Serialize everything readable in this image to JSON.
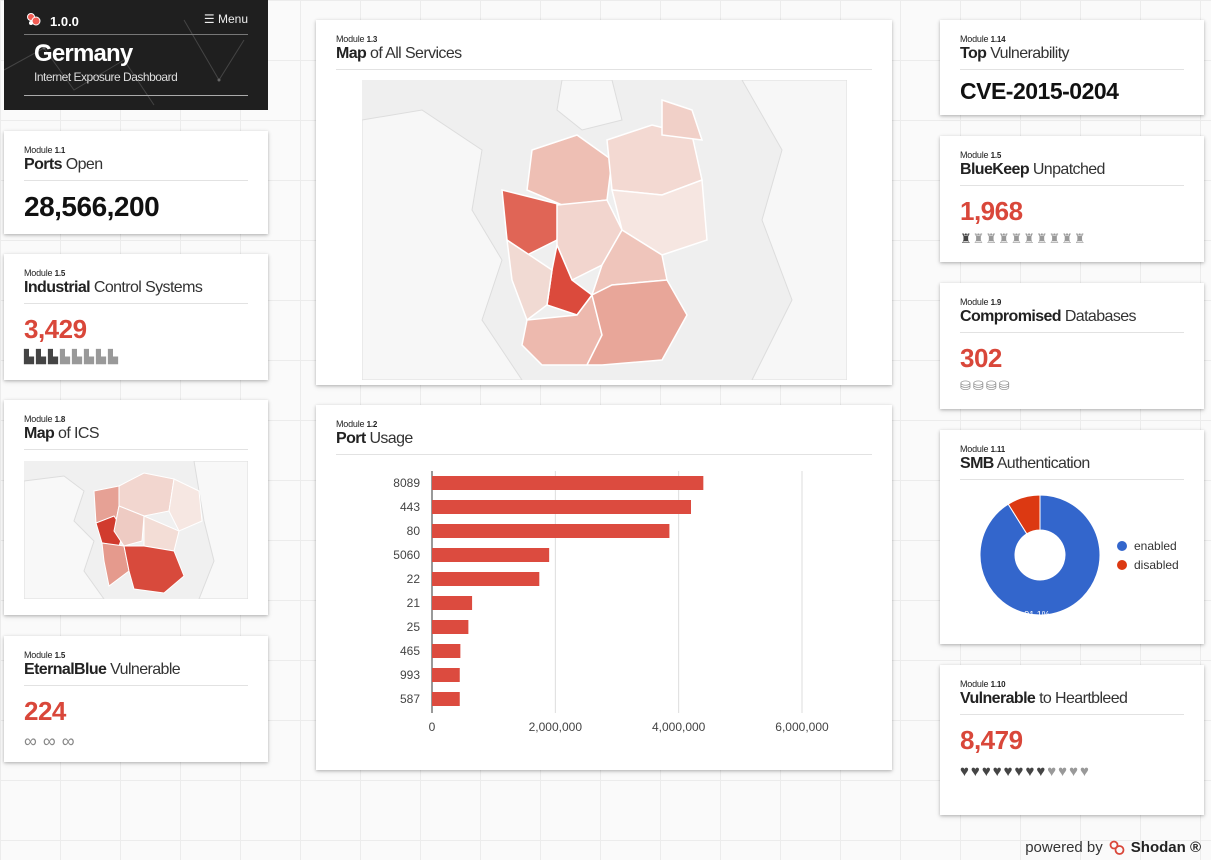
{
  "header": {
    "version": "1.0.0",
    "menu_label": "Menu",
    "country": "Germany",
    "subtitle": "Internet Exposure Dashboard"
  },
  "ports_open": {
    "module_word": "Module",
    "module_num": "1.1",
    "title_bold": "Ports",
    "title_rest": " Open",
    "value": "28,566,200"
  },
  "ics": {
    "module_word": "Module",
    "module_num": "1.5",
    "title_bold": "Industrial",
    "title_rest": " Control Systems",
    "value": "3,429",
    "icon": "factory-icon",
    "icons_total": 8,
    "icons_on": 3
  },
  "ics_map": {
    "module_word": "Module",
    "module_num": "1.8",
    "title_bold": "Map",
    "title_rest": " of ICS"
  },
  "eternalblue": {
    "module_word": "Module",
    "module_num": "1.5",
    "title_bold": "EternalBlue",
    "title_rest": " Vulnerable",
    "value": "224",
    "icon": "infinity-icon",
    "icons_total": 3
  },
  "services_map": {
    "module_word": "Module",
    "module_num": "1.3",
    "title_bold": "Map",
    "title_rest": " of All Services"
  },
  "port_usage": {
    "module_word": "Module",
    "module_num": "1.2",
    "title_bold": "Port",
    "title_rest": " Usage",
    "chart_data": {
      "type": "bar",
      "orientation": "horizontal",
      "categories": [
        "8089",
        "443",
        "80",
        "5060",
        "22",
        "21",
        "25",
        "465",
        "993",
        "587"
      ],
      "values": [
        4400000,
        4200000,
        3850000,
        1900000,
        1740000,
        650000,
        590000,
        460000,
        450000,
        450000
      ],
      "xlim": [
        0,
        6000000
      ],
      "xticks": [
        "0",
        "2,000,000",
        "4,000,000",
        "6,000,000"
      ],
      "bar_color": "#dc4b3f",
      "grid": true
    }
  },
  "top_vuln": {
    "module_word": "Module",
    "module_num": "1.14",
    "title_bold": "Top",
    "title_rest": " Vulnerability",
    "value": "CVE-2015-0204"
  },
  "bluekeep": {
    "module_word": "Module",
    "module_num": "1.5",
    "title_bold": "BlueKeep",
    "title_rest": " Unpatched",
    "value": "1,968",
    "icon": "rook-icon",
    "icons_total": 10,
    "icons_on": 1
  },
  "databases": {
    "module_word": "Module",
    "module_num": "1.9",
    "title_bold": "Compromised",
    "title_rest": " Databases",
    "value": "302",
    "icon": "database-icon",
    "icons_total": 4
  },
  "smb": {
    "module_word": "Module",
    "module_num": "1.11",
    "title_bold": "SMB",
    "title_rest": " Authentication",
    "chart_data": {
      "type": "pie",
      "donut": true,
      "labels": [
        "enabled",
        "disabled"
      ],
      "values": [
        91.1,
        8.9
      ],
      "colors": [
        "#3366cc",
        "#dc3912"
      ],
      "slice_labels": [
        "91.1%",
        ""
      ],
      "legend": "right"
    }
  },
  "heartbleed": {
    "module_word": "Module",
    "module_num": "1.10",
    "title_bold": "Vulnerable",
    "title_rest": " to Heartbleed",
    "value": "8,479",
    "icon": "heart-icon",
    "icons_total": 12,
    "icons_on": 8
  },
  "footer": {
    "powered_by": "powered by",
    "brand": "Shodan ®"
  },
  "colors": {
    "accent_red": "#d9473a",
    "header_bg": "#1f1f1f"
  }
}
